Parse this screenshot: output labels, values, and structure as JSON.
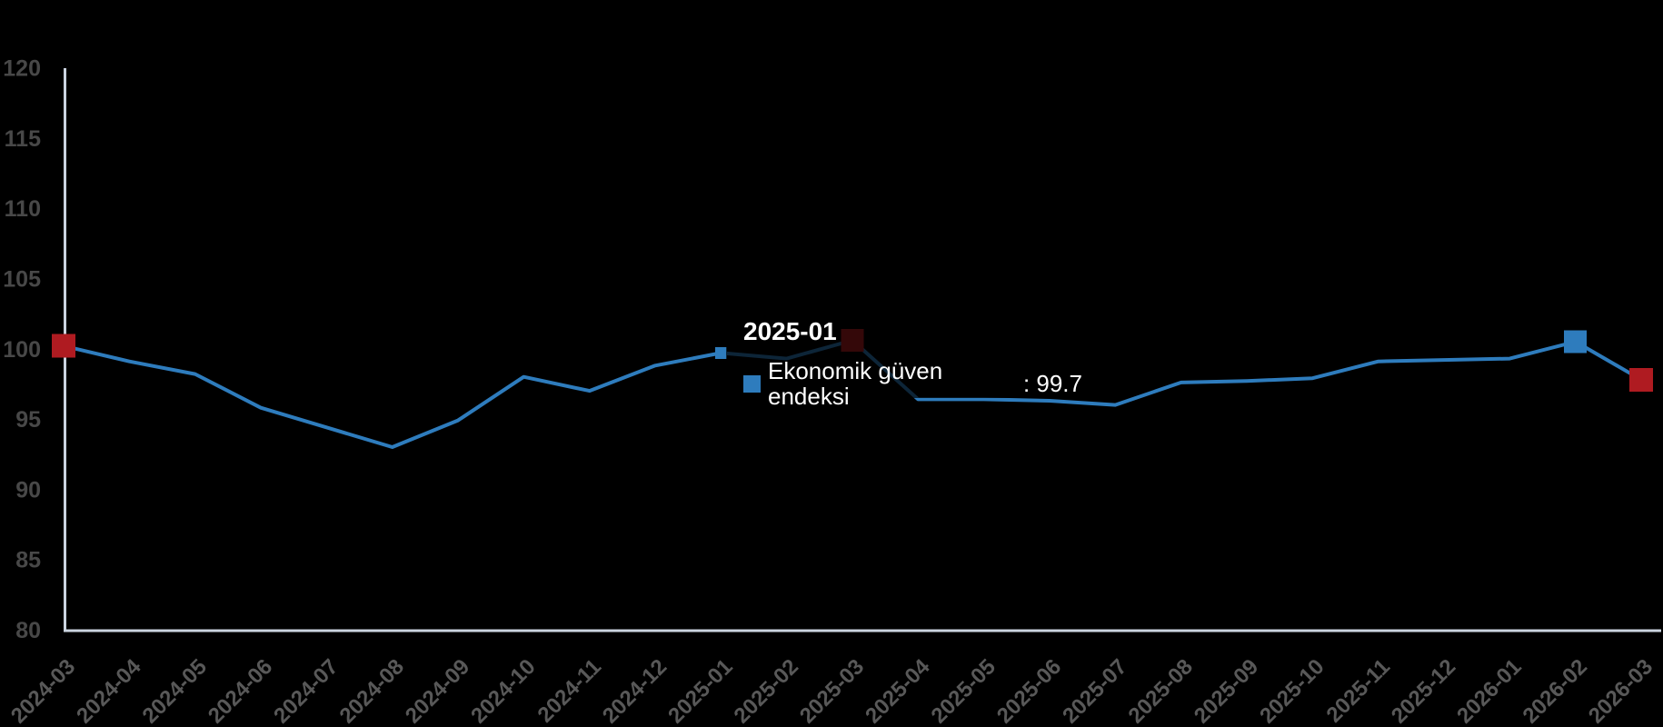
{
  "chart": {
    "background": "#000000",
    "series_color": "#2E7CBD",
    "marker_red": "#AF1B21",
    "marker_blue": "#2E7CBD",
    "axis_line_color": "#CBD4E0",
    "y_label_color": "#484848",
    "x_label_color": "#585858"
  },
  "chart_data": {
    "type": "line",
    "title": "",
    "xlabel": "",
    "ylabel": "",
    "grid": false,
    "legend_position": "none",
    "ylim": [
      80,
      120
    ],
    "y_ticks": [
      80,
      85,
      90,
      95,
      100,
      105,
      110,
      115,
      120
    ],
    "categories": [
      "2024-03",
      "2024-04",
      "2024-05",
      "2024-06",
      "2024-07",
      "2024-08",
      "2024-09",
      "2024-10",
      "2024-11",
      "2024-12",
      "2025-01",
      "2025-02",
      "2025-03",
      "2025-04",
      "2025-05",
      "2025-06",
      "2025-07",
      "2025-08",
      "2025-09",
      "2025-10",
      "2025-11",
      "2025-12",
      "2026-01",
      "2026-02",
      "2026-03"
    ],
    "series": [
      {
        "name": "Ekonomik güven endeksi",
        "color": "#2E7CBD",
        "values": [
          100.2,
          99.1,
          98.2,
          95.8,
          94.4,
          93.0,
          94.9,
          98.0,
          97.0,
          98.8,
          99.7,
          99.3,
          100.6,
          96.4,
          96.4,
          96.3,
          96.0,
          97.6,
          97.7,
          97.9,
          99.1,
          99.2,
          99.3,
          100.5,
          97.8
        ]
      }
    ],
    "special_markers": [
      {
        "category": "2024-03",
        "color": "#AF1B21",
        "size": 26
      },
      {
        "category": "2025-03",
        "color": "#AF1B21",
        "size": 25
      },
      {
        "category": "2026-02",
        "color": "#2E7CBD",
        "size": 25
      },
      {
        "category": "2026-03",
        "color": "#AF1B21",
        "size": 26
      }
    ],
    "hover_point": {
      "category": "2025-01",
      "color": "#2E7CBD",
      "size": 13
    }
  },
  "tooltip": {
    "title": "2025-01",
    "series_label": "Ekonomik güven endeksi",
    "separator": ": ",
    "value": "99.7"
  }
}
